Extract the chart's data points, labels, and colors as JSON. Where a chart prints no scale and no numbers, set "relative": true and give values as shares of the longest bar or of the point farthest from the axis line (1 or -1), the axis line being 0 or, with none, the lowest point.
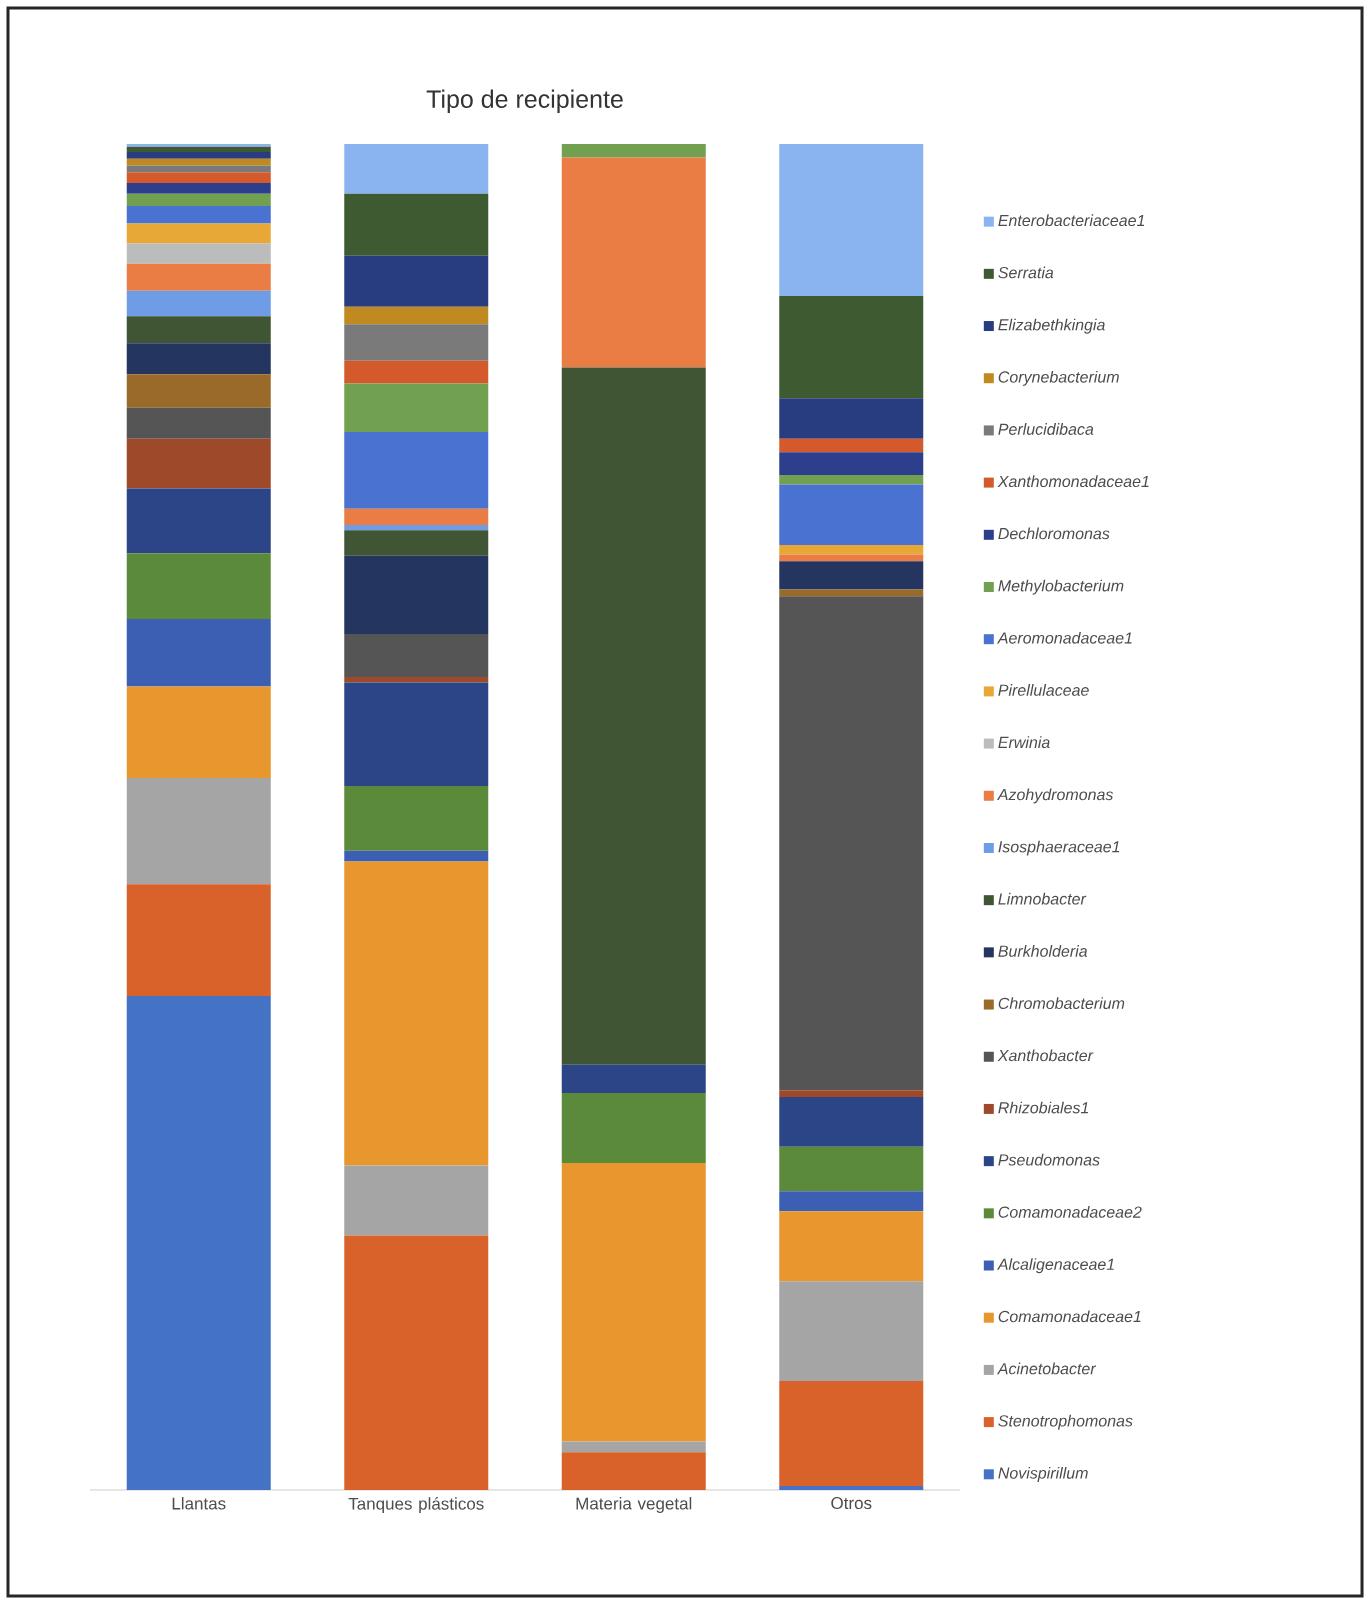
{
  "chart_data": {
    "type": "bar",
    "stacked": true,
    "relative": true,
    "title": "Tipo de recipiente",
    "legend": "right",
    "categories": [
      "Llantas",
      "Tanques plásticos",
      "Materia vegetal",
      "Otros"
    ],
    "series": [
      {
        "name": "Novispirillum",
        "color": "#4472c4",
        "values": [
          0.367,
          0,
          0,
          0.003
        ]
      },
      {
        "name": "Stenotrophomonas",
        "color": "#d9622b",
        "values": [
          0.083,
          0.189,
          0.028,
          0.078
        ]
      },
      {
        "name": "Acinetobacter",
        "color": "#a5a5a5",
        "values": [
          0.079,
          0.052,
          0.008,
          0.074
        ]
      },
      {
        "name": "Comamonadaceae1",
        "color": "#e8962e",
        "values": [
          0.068,
          0.226,
          0.207,
          0.052
        ]
      },
      {
        "name": "Alcaligenaceae1",
        "color": "#3c5fb4",
        "values": [
          0.05,
          0.008,
          0,
          0.015
        ]
      },
      {
        "name": "Comamonadaceae2",
        "color": "#5b8a3a",
        "values": [
          0.049,
          0.048,
          0.052,
          0.033
        ]
      },
      {
        "name": "Pseudomonas",
        "color": "#2b4586",
        "values": [
          0.048,
          0.077,
          0.021,
          0.037
        ]
      },
      {
        "name": "Rhizobiales1",
        "color": "#9e4a2a",
        "values": [
          0.037,
          0.004,
          0,
          0.005
        ]
      },
      {
        "name": "Xanthobacter",
        "color": "#555555",
        "values": [
          0.023,
          0.032,
          0,
          0.367
        ]
      },
      {
        "name": "Chromobacterium",
        "color": "#9a6a2a",
        "values": [
          0.025,
          0,
          0,
          0.005
        ]
      },
      {
        "name": "Burkholderia",
        "color": "#24365f",
        "values": [
          0.023,
          0.058,
          0,
          0.021
        ]
      },
      {
        "name": "Limnobacter",
        "color": "#3f5533",
        "values": [
          0.02,
          0.019,
          0.518,
          0
        ]
      },
      {
        "name": "Isosphaeraceae1",
        "color": "#6f9ce6",
        "values": [
          0.019,
          0.004,
          0,
          0
        ]
      },
      {
        "name": "Azohydromonas",
        "color": "#ea7d44",
        "values": [
          0.02,
          0.012,
          0.156,
          0.005
        ]
      },
      {
        "name": "Erwinia",
        "color": "#bcbcbc",
        "values": [
          0.015,
          0,
          0,
          0
        ]
      },
      {
        "name": "Pirellulaceae",
        "color": "#e8a838",
        "values": [
          0.015,
          0,
          0,
          0.007
        ]
      },
      {
        "name": "Aeromonadaceae1",
        "color": "#4a72d0",
        "values": [
          0.013,
          0.057,
          0,
          0.045
        ]
      },
      {
        "name": "Methylobacterium",
        "color": "#70a050",
        "values": [
          0.009,
          0.036,
          0.01,
          0.007
        ]
      },
      {
        "name": "Dechloromonas",
        "color": "#2c3e8c",
        "values": [
          0.008,
          0,
          0,
          0.017
        ]
      },
      {
        "name": "Xanthomonadaceae1",
        "color": "#d45a2c",
        "values": [
          0.008,
          0.017,
          0,
          0.01
        ]
      },
      {
        "name": "Perlucidibaca",
        "color": "#7a7a7a",
        "values": [
          0.005,
          0.027,
          0,
          0
        ]
      },
      {
        "name": "Corynebacterium",
        "color": "#c08a20",
        "values": [
          0.005,
          0.013,
          0,
          0
        ]
      },
      {
        "name": "Elizabethkingia",
        "color": "#283c80",
        "values": [
          0.005,
          0.038,
          0,
          0.03
        ]
      },
      {
        "name": "Serratia",
        "color": "#3e5a30",
        "values": [
          0.004,
          0.046,
          0,
          0.076
        ]
      },
      {
        "name": "Enterobacteriaceae1",
        "color": "#8ab4f0",
        "values": [
          0.002,
          0.037,
          0,
          0.113
        ]
      }
    ]
  }
}
